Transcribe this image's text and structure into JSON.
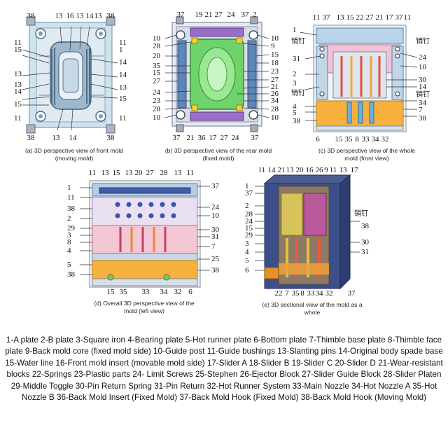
{
  "panels": {
    "a": {
      "caption": [
        "(a) 3D perspective view of front mold",
        "(moving mold)"
      ],
      "labels": {
        "top": [
          "38",
          "13",
          "16",
          "13",
          "14",
          "13",
          "38"
        ],
        "left": [
          "11",
          "15",
          "13",
          "13",
          "14",
          "15",
          "11"
        ],
        "right": [
          "11",
          "1",
          "14",
          "14",
          "13",
          "15",
          "11"
        ],
        "bottom": [
          "38",
          "13",
          "14",
          "38"
        ]
      }
    },
    "b": {
      "caption": [
        "(b) 3D perspective view of the rear mold",
        "(fixed mold)"
      ],
      "labels": {
        "top": [
          "37",
          "19",
          "21",
          "27",
          "24",
          "37",
          "2"
        ],
        "left": [
          "10",
          "28",
          "20",
          "35",
          "15",
          "27",
          "24",
          "23",
          "28",
          "10"
        ],
        "right": [
          "10",
          "9",
          "15",
          "18",
          "23",
          "27",
          "21",
          "26",
          "34",
          "28",
          "10"
        ],
        "bottom": [
          "37",
          "21",
          "36",
          "17",
          "27",
          "24",
          "37"
        ]
      }
    },
    "c": {
      "caption": [
        "(c) 3D perspective view of the whole",
        "mold (front view)"
      ],
      "pin": "销钉",
      "labels": {
        "top": [
          "11",
          "37",
          "13",
          "15",
          "22",
          "27",
          "21",
          "17",
          "37",
          "11"
        ],
        "left": [
          "1",
          "31",
          "2",
          "3",
          "4",
          "5",
          "38"
        ],
        "right": [
          "24",
          "10",
          "30",
          "14",
          "34",
          "7",
          "38"
        ],
        "bottom": [
          "6",
          "15",
          "35",
          "8",
          "33",
          "34",
          "32"
        ]
      }
    },
    "d": {
      "caption": [
        "(d) Overall 3D perspective view of the",
        "mold (left view)"
      ],
      "labels": {
        "top": [
          "11",
          "13",
          "15",
          "13",
          "20",
          "27",
          "28",
          "13",
          "11"
        ],
        "left": [
          "1",
          "11",
          "38",
          "2",
          "29",
          "3",
          "8",
          "4",
          "5",
          "38"
        ],
        "right": [
          "37",
          "24",
          "10",
          "30",
          "31",
          "7",
          "25",
          "38"
        ],
        "bottom": [
          "15",
          "35",
          "33",
          "34",
          "32",
          "6"
        ]
      }
    },
    "e": {
      "caption": [
        "(e) 3D sectional view of the mold as a",
        "whole"
      ],
      "pin": "销钉",
      "labels": {
        "top": [
          "11",
          "14",
          "21",
          "13",
          "20",
          "16",
          "26",
          "9",
          "11",
          "13",
          "17"
        ],
        "left": [
          "1",
          "37",
          "2",
          "28",
          "24",
          "15",
          "29",
          "3",
          "4",
          "5",
          "6"
        ],
        "right": [
          "38",
          "30",
          "31"
        ],
        "bottom": [
          "22",
          "7",
          "35",
          "8",
          "33",
          "34",
          "32",
          "37"
        ]
      }
    }
  },
  "legend": "1-A plate 2-B plate 3-Square iron 4-Bearing plate 5-Hot runner plate 6-Bottom plate 7-Thimble base plate 8-Thimble face plate 9-Back mold core (fixed mold side) 10-Guide post 11-Guide bushings 13-Slanting pins 14-Original body spade base 15-Water line 16-Front mold insert (movable mold side) 17-Slider A 18-Slider B 19-Slider C 20-Slider D 21-Wear-resistant blocks 22-Springs 23-Plastic parts 24- Limit Screws 25-Stephen 26-Ejector Block 27-Slider Guide Block 28-Slider Platen 29-Middle Toggle 30-Pin Return Spring 31-Pin Return 32-Hot Runner System 33-Main Nozzle 34-Hot Nozzle A 35-Hot Nozzle B 36-Back Mold Insert (Fixed Mold) 37-Back Mold Hook (Fixed Mold) 38-Back Mold Hook (Moving Mold)"
}
